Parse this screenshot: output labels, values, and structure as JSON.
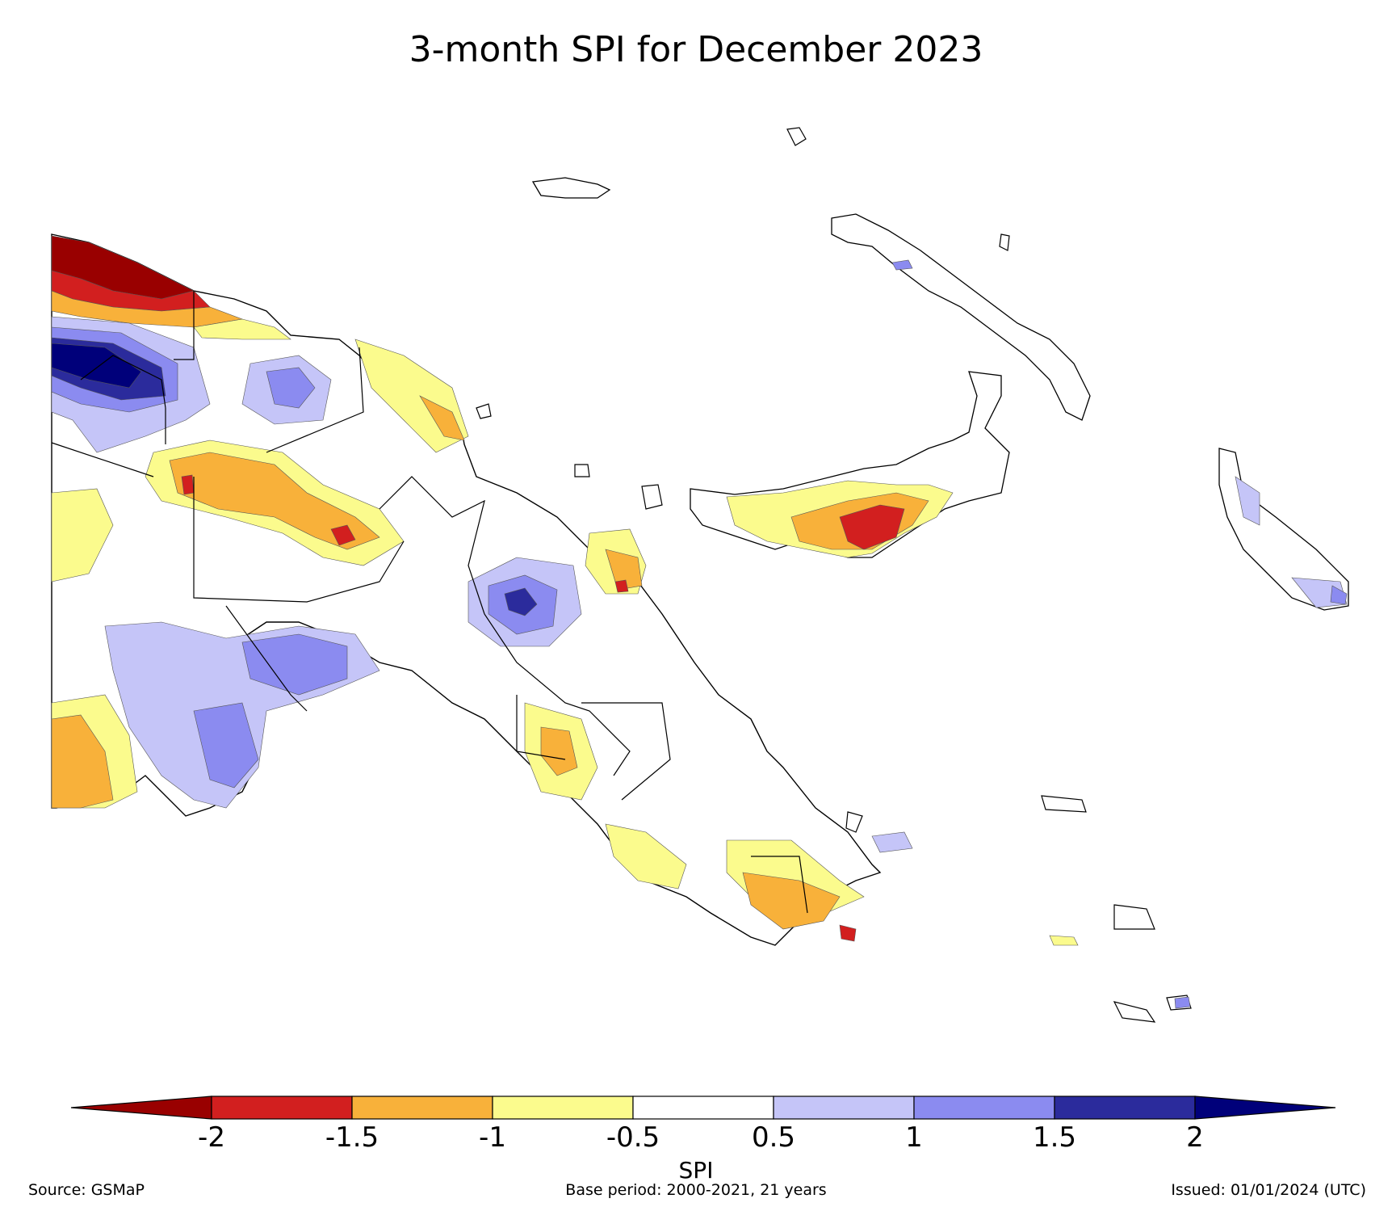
{
  "title": "3-month SPI for December 2023",
  "colorbar": {
    "label": "SPI",
    "ticks": [
      "-2",
      "-1.5",
      "-1",
      "-0.5",
      "0.5",
      "1",
      "1.5",
      "2"
    ],
    "colors": {
      "below_-2": "#990000",
      "-2_to_-1.5": "#d21f1f",
      "-1.5_to_-1": "#f8b13a",
      "-1_to_-0.5": "#fbfb8d",
      "-0.5_to_0.5": "#ffffff",
      "0.5_to_1": "#c5c5f8",
      "1_to_1.5": "#8b8bf0",
      "1.5_to_2": "#2b2b9c",
      "above_2": "#00007a"
    }
  },
  "footer": {
    "source": "Source: GSMaP",
    "base_period": "Base period: 2000-2021, 21 years",
    "issued": "Issued: 01/01/2024 (UTC)"
  }
}
